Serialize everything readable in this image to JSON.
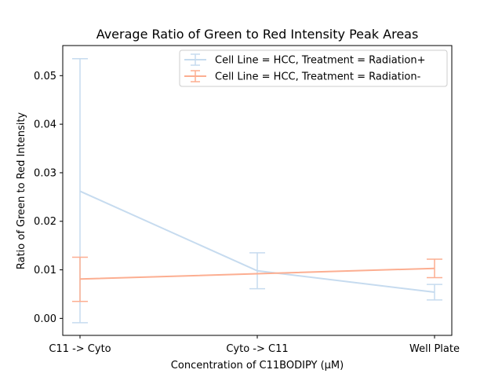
{
  "chart_data": {
    "type": "line",
    "title": "Average Ratio of Green to Red Intensity Peak Areas",
    "xlabel": "Concentration of C11BODIPY (μM)",
    "ylabel": "Ratio of Green to Red Intensity",
    "categories": [
      "C11 -> Cyto",
      "Cyto -> C11",
      "Well Plate"
    ],
    "ylim": [
      -0.0035,
      0.0562
    ],
    "yticks": [
      0.0,
      0.01,
      0.02,
      0.03,
      0.04,
      0.05
    ],
    "ytick_labels": [
      "0.00",
      "0.01",
      "0.02",
      "0.03",
      "0.04",
      "0.05"
    ],
    "grid": false,
    "legend_position": "upper right",
    "series": [
      {
        "name": "Cell Line = HCC, Treatment = Radiation+",
        "color": "#c6dbef",
        "values": [
          0.0262,
          0.0098,
          0.0054
        ],
        "err_low": [
          -0.0009,
          0.0061,
          0.0038
        ],
        "err_high": [
          0.0535,
          0.0135,
          0.007
        ]
      },
      {
        "name": "Cell Line = HCC, Treatment = Radiation-",
        "color": "#fcae91",
        "values": [
          0.0081,
          0.0092,
          0.0103
        ],
        "err_low": [
          0.0035,
          0.0092,
          0.0084
        ],
        "err_high": [
          0.0126,
          0.0092,
          0.0122
        ]
      }
    ]
  }
}
